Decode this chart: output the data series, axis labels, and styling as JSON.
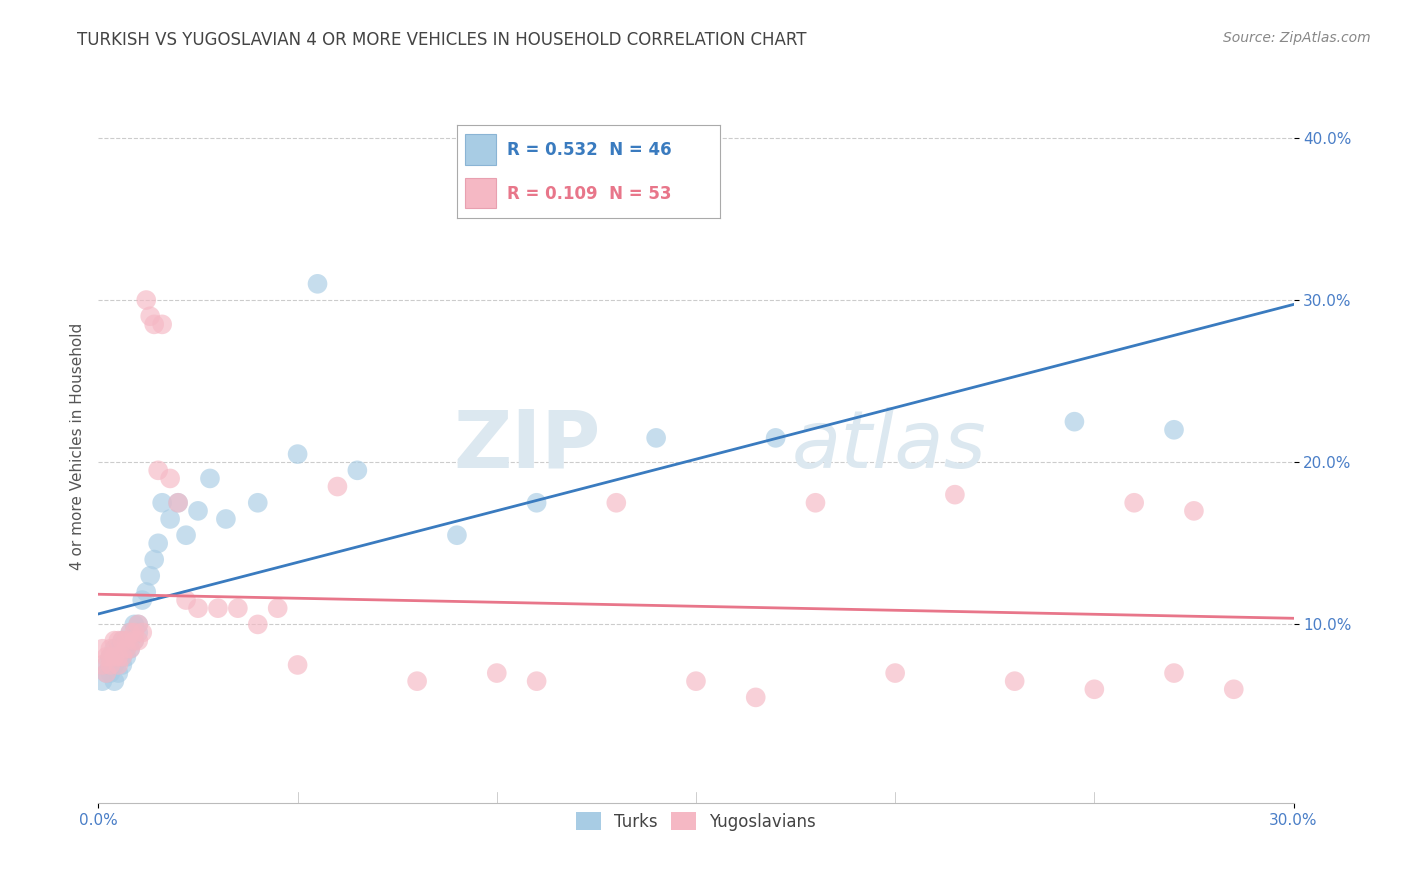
{
  "title": "TURKISH VS YUGOSLAVIAN 4 OR MORE VEHICLES IN HOUSEHOLD CORRELATION CHART",
  "source": "Source: ZipAtlas.com",
  "ylabel": "4 or more Vehicles in Household",
  "xlim": [
    0.0,
    0.3
  ],
  "ylim": [
    -0.01,
    0.43
  ],
  "xticks": [
    0.0,
    0.3
  ],
  "yticks": [
    0.1,
    0.2,
    0.3,
    0.4
  ],
  "xtick_labels": [
    "0.0%",
    "30.0%"
  ],
  "ytick_labels": [
    "10.0%",
    "20.0%",
    "30.0%",
    "40.0%"
  ],
  "blue_R": 0.532,
  "blue_N": 46,
  "pink_R": 0.109,
  "pink_N": 53,
  "blue_color": "#a8cce4",
  "pink_color": "#f5b8c4",
  "blue_line_color": "#3a7bbf",
  "pink_line_color": "#e8768a",
  "legend_label_blue": "Turks",
  "legend_label_pink": "Yugoslavians",
  "watermark_zip": "ZIP",
  "watermark_atlas": "atlas",
  "blue_x": [
    0.001,
    0.002,
    0.002,
    0.003,
    0.003,
    0.004,
    0.004,
    0.004,
    0.005,
    0.005,
    0.005,
    0.006,
    0.006,
    0.006,
    0.007,
    0.007,
    0.007,
    0.008,
    0.008,
    0.008,
    0.009,
    0.009,
    0.01,
    0.01,
    0.011,
    0.012,
    0.013,
    0.014,
    0.015,
    0.016,
    0.018,
    0.02,
    0.022,
    0.025,
    0.028,
    0.032,
    0.04,
    0.05,
    0.055,
    0.065,
    0.09,
    0.11,
    0.14,
    0.17,
    0.245,
    0.27
  ],
  "blue_y": [
    0.065,
    0.07,
    0.075,
    0.07,
    0.08,
    0.065,
    0.075,
    0.085,
    0.07,
    0.08,
    0.085,
    0.075,
    0.08,
    0.09,
    0.08,
    0.085,
    0.09,
    0.085,
    0.09,
    0.095,
    0.09,
    0.1,
    0.095,
    0.1,
    0.115,
    0.12,
    0.13,
    0.14,
    0.15,
    0.175,
    0.165,
    0.175,
    0.155,
    0.17,
    0.19,
    0.165,
    0.175,
    0.205,
    0.31,
    0.195,
    0.155,
    0.175,
    0.215,
    0.215,
    0.225,
    0.22
  ],
  "pink_x": [
    0.001,
    0.001,
    0.002,
    0.002,
    0.003,
    0.003,
    0.003,
    0.004,
    0.004,
    0.005,
    0.005,
    0.005,
    0.006,
    0.006,
    0.007,
    0.007,
    0.008,
    0.008,
    0.009,
    0.009,
    0.01,
    0.01,
    0.011,
    0.012,
    0.013,
    0.014,
    0.015,
    0.016,
    0.018,
    0.02,
    0.022,
    0.025,
    0.03,
    0.035,
    0.04,
    0.045,
    0.05,
    0.06,
    0.08,
    0.1,
    0.11,
    0.13,
    0.15,
    0.165,
    0.18,
    0.2,
    0.215,
    0.23,
    0.25,
    0.26,
    0.27,
    0.275,
    0.285
  ],
  "pink_y": [
    0.075,
    0.085,
    0.07,
    0.08,
    0.075,
    0.08,
    0.085,
    0.08,
    0.09,
    0.075,
    0.08,
    0.09,
    0.08,
    0.09,
    0.085,
    0.09,
    0.085,
    0.095,
    0.09,
    0.095,
    0.09,
    0.1,
    0.095,
    0.3,
    0.29,
    0.285,
    0.195,
    0.285,
    0.19,
    0.175,
    0.115,
    0.11,
    0.11,
    0.11,
    0.1,
    0.11,
    0.075,
    0.185,
    0.065,
    0.07,
    0.065,
    0.175,
    0.065,
    0.055,
    0.175,
    0.07,
    0.18,
    0.065,
    0.06,
    0.175,
    0.07,
    0.17,
    0.06
  ]
}
